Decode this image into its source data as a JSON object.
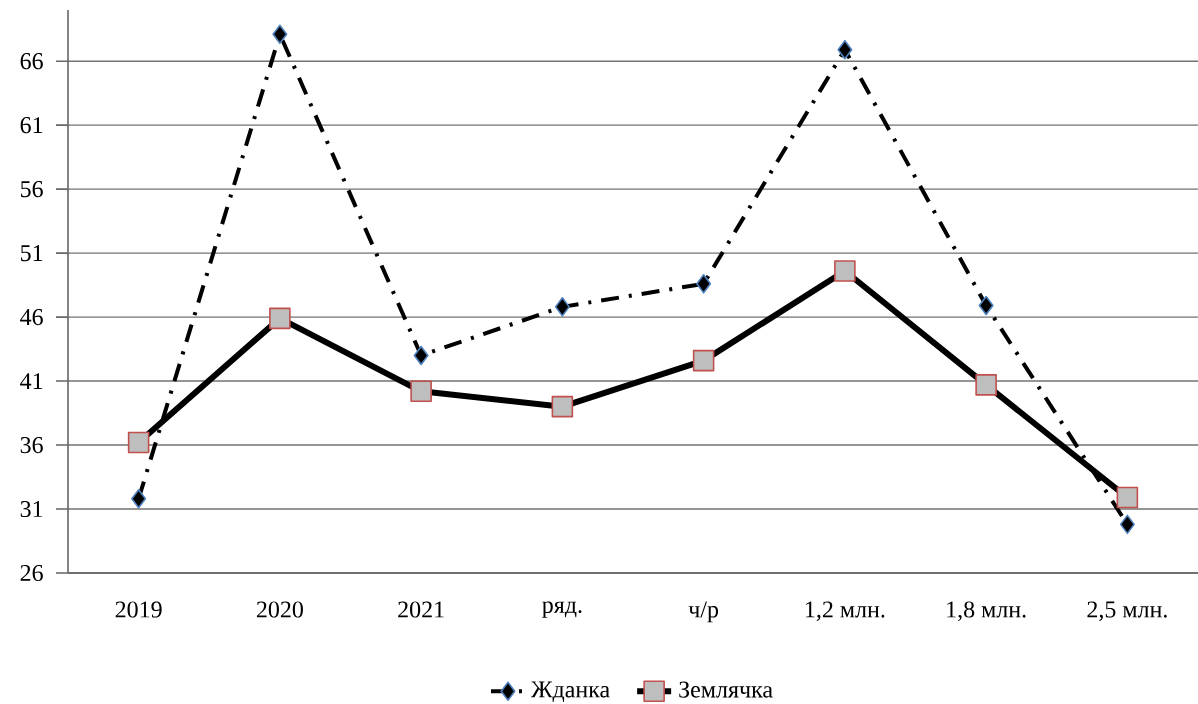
{
  "chart_data": {
    "type": "line",
    "categories": [
      "2019",
      "2020",
      "2021",
      "ряд.",
      "ч/р",
      "1,2 млн.",
      "1,8 млн.",
      "2,5 млн."
    ],
    "series": [
      {
        "name": "Жданка",
        "color": "#000000",
        "marker": "diamond",
        "line_style": "dashed",
        "values": [
          31.8,
          68.1,
          43.0,
          46.8,
          48.6,
          66.9,
          46.9,
          29.8
        ]
      },
      {
        "name": "Землячка",
        "color": "#000000",
        "marker": "square",
        "line_style": "solid",
        "values": [
          36.2,
          45.9,
          40.2,
          39.0,
          42.6,
          49.6,
          40.7,
          31.9
        ]
      }
    ],
    "ylim": [
      26,
      70
    ],
    "yticks": [
      26,
      31,
      36,
      41,
      46,
      51,
      56,
      61,
      66
    ],
    "grid": "y",
    "legend": "bottom"
  }
}
